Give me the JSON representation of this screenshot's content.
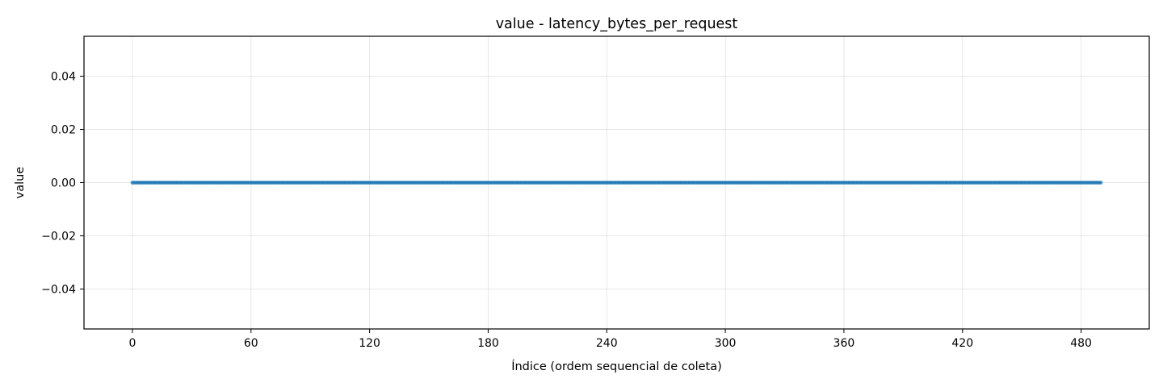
{
  "chart_data": {
    "type": "line",
    "title": "value - latency_bytes_per_request",
    "xlabel": "Índice (ordem sequencial de coleta)",
    "ylabel": "value",
    "xlim": [
      -24.5,
      514.5
    ],
    "ylim": [
      -0.055,
      0.055
    ],
    "x_ticks": [
      0,
      60,
      120,
      180,
      240,
      300,
      360,
      420,
      480
    ],
    "x_tick_labels": [
      "0",
      "60",
      "120",
      "180",
      "240",
      "300",
      "360",
      "420",
      "480"
    ],
    "y_ticks": [
      0.04,
      0.02,
      0.0,
      -0.02,
      -0.04
    ],
    "y_tick_labels": [
      "0.04",
      "0.02",
      "0.00",
      "−0.02",
      "−0.04"
    ],
    "grid": true,
    "marker": "circle",
    "series": [
      {
        "color": "#1f77b4",
        "x_start": 0,
        "x_end": 490,
        "x_step": 1,
        "y_constant": 0.0
      }
    ]
  }
}
